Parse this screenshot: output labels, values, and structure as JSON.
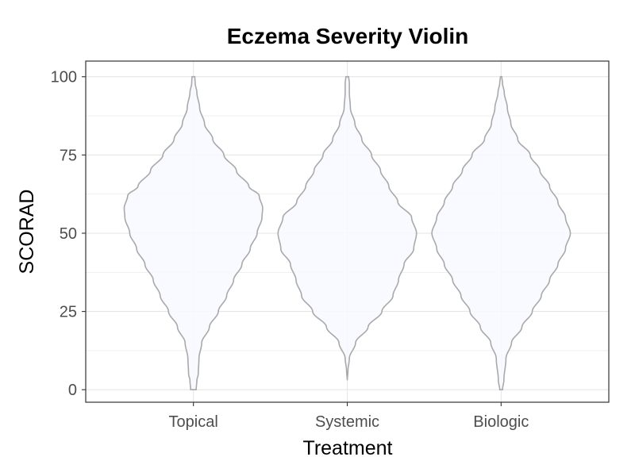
{
  "chart_data": {
    "type": "violin",
    "title": "Eczema Severity Violin",
    "xlabel": "Treatment",
    "ylabel": "SCORAD",
    "ylim": [
      -4,
      105
    ],
    "yticks": [
      0,
      25,
      50,
      75,
      100
    ],
    "ytick_labels": [
      "0",
      "25",
      "50",
      "75",
      "100"
    ],
    "categories": [
      "Topical",
      "Systemic",
      "Biologic"
    ],
    "grid": true,
    "legend": "none",
    "colors": {
      "fill": "#f8f9ff",
      "outline": "#a9a9a9",
      "grid": "#e6e6e6",
      "border": "#333333"
    },
    "series": [
      {
        "category": "Topical",
        "density_profile": [
          [
            0,
            0.04
          ],
          [
            3,
            0.05
          ],
          [
            5,
            0.07
          ],
          [
            10,
            0.08
          ],
          [
            15,
            0.12
          ],
          [
            20,
            0.23
          ],
          [
            25,
            0.36
          ],
          [
            30,
            0.48
          ],
          [
            35,
            0.58
          ],
          [
            40,
            0.7
          ],
          [
            45,
            0.82
          ],
          [
            50,
            0.92
          ],
          [
            55,
            0.99
          ],
          [
            58,
            1.0
          ],
          [
            62,
            0.95
          ],
          [
            65,
            0.8
          ],
          [
            70,
            0.62
          ],
          [
            75,
            0.44
          ],
          [
            80,
            0.28
          ],
          [
            85,
            0.16
          ],
          [
            90,
            0.09
          ],
          [
            95,
            0.05
          ],
          [
            98,
            0.025
          ],
          [
            100,
            0.02
          ]
        ]
      },
      {
        "category": "Systemic",
        "density_profile": [
          [
            3,
            0.0
          ],
          [
            6,
            0.01
          ],
          [
            10,
            0.03
          ],
          [
            15,
            0.12
          ],
          [
            20,
            0.3
          ],
          [
            25,
            0.5
          ],
          [
            30,
            0.66
          ],
          [
            35,
            0.74
          ],
          [
            40,
            0.82
          ],
          [
            45,
            0.96
          ],
          [
            50,
            1.0
          ],
          [
            55,
            0.93
          ],
          [
            60,
            0.73
          ],
          [
            65,
            0.6
          ],
          [
            70,
            0.48
          ],
          [
            75,
            0.35
          ],
          [
            80,
            0.21
          ],
          [
            85,
            0.11
          ],
          [
            90,
            0.045
          ],
          [
            95,
            0.03
          ],
          [
            98,
            0.03
          ],
          [
            100,
            0.02
          ]
        ]
      },
      {
        "category": "Biologic",
        "density_profile": [
          [
            0,
            0.02
          ],
          [
            3,
            0.04
          ],
          [
            10,
            0.07
          ],
          [
            15,
            0.15
          ],
          [
            20,
            0.3
          ],
          [
            25,
            0.45
          ],
          [
            30,
            0.58
          ],
          [
            35,
            0.7
          ],
          [
            40,
            0.82
          ],
          [
            45,
            0.93
          ],
          [
            50,
            1.0
          ],
          [
            55,
            0.93
          ],
          [
            60,
            0.82
          ],
          [
            65,
            0.7
          ],
          [
            70,
            0.56
          ],
          [
            75,
            0.42
          ],
          [
            80,
            0.24
          ],
          [
            85,
            0.14
          ],
          [
            90,
            0.09
          ],
          [
            95,
            0.045
          ],
          [
            98,
            0.02
          ],
          [
            100,
            0.01
          ]
        ]
      }
    ]
  }
}
